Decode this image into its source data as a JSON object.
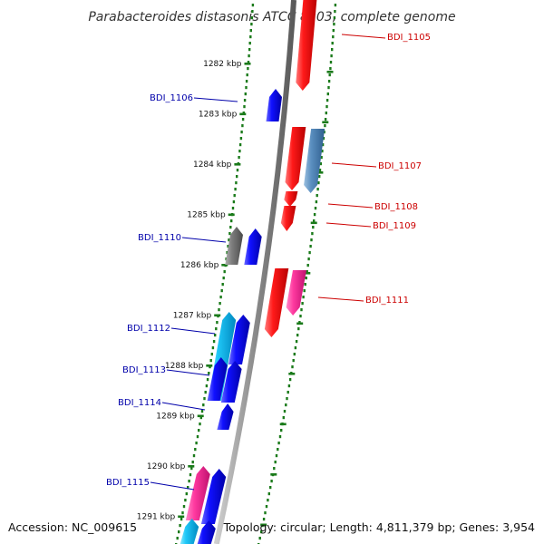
{
  "title": "Parabacteroides distasonis ATCC 8503, complete genome",
  "accession": "Accession: NC_009615",
  "topology": "Topology: circular; Length: 4,811,379 bp; Genes: 3,954",
  "colors": {
    "forward_label": "#cc0000",
    "reverse_label": "#0000aa",
    "tick": "#1a7a1a",
    "backbone": "#8a8a8a"
  },
  "scale_ticks": [
    "1282 kbp",
    "1283 kbp",
    "1284 kbp",
    "1285 kbp",
    "1286 kbp",
    "1287 kbp",
    "1288 kbp",
    "1289 kbp",
    "1290 kbp",
    "1291 kbp"
  ],
  "forward_genes": [
    "BDI_1105",
    "BDI_1107",
    "BDI_1108",
    "BDI_1109",
    "BDI_1111"
  ],
  "reverse_genes": [
    "BDI_1106",
    "BDI_1110",
    "BDI_1112",
    "BDI_1113",
    "BDI_1114",
    "BDI_1115"
  ]
}
